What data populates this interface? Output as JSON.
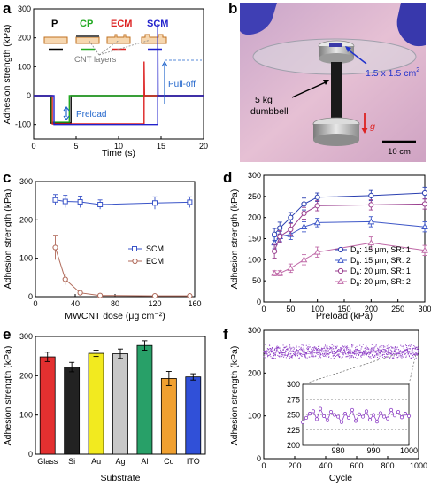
{
  "panels": {
    "a": {
      "label": "a"
    },
    "b": {
      "label": "b"
    },
    "c": {
      "label": "c"
    },
    "d": {
      "label": "d"
    },
    "e": {
      "label": "e"
    },
    "f": {
      "label": "f"
    }
  },
  "colors": {
    "P": "#000000",
    "CP": "#22aa22",
    "ECM": "#dd2222",
    "SCM": "#2222cc",
    "SCM_c": "#3b55c8",
    "ECM_c": "#b06a5a",
    "d1": "#2a3fb0",
    "d2": "#3f58c8",
    "d3": "#9a3f8f",
    "d4": "#c06aa8",
    "f_pts": "#8e3fc6"
  },
  "panel_b": {
    "area_label": "1.5 x 1.5 cm",
    "area_sup": "2",
    "weight_label": "5 kg",
    "weight_label2": "dumbbell",
    "gravity_symbol": "g",
    "scale_label": "10 cm"
  },
  "chart_data": [
    {
      "id": "a",
      "type": "line",
      "title": "",
      "xlabel": "Time (s)",
      "ylabel": "Adhesion strength (kPa)",
      "xlim": [
        0,
        20
      ],
      "ylim": [
        -150,
        300
      ],
      "xticks": [
        0,
        5,
        10,
        15,
        20
      ],
      "yticks": [
        -100,
        0,
        100,
        200,
        300
      ],
      "xtick_labels": [
        "0",
        "5",
        "10",
        "15",
        "20"
      ],
      "ytick_labels": [
        "-100",
        "0",
        "100",
        "200",
        "300"
      ],
      "legend": [
        "P",
        "CP",
        "ECM",
        "SCM"
      ],
      "annotations": {
        "cnt": "CNT layers",
        "preload": "Preload",
        "pulloff": "Pull-off"
      },
      "series": [
        {
          "name": "P",
          "x": [
            0,
            2.0,
            2.0,
            4.4,
            4.4,
            20
          ],
          "y": [
            0,
            0,
            -95,
            -95,
            0,
            0
          ]
        },
        {
          "name": "CP",
          "x": [
            0,
            2.1,
            2.1,
            4.2,
            4.2,
            20
          ],
          "y": [
            0,
            0,
            -92,
            -92,
            0,
            0
          ]
        },
        {
          "name": "ECM",
          "x": [
            0,
            2.2,
            2.2,
            13.0,
            13.0,
            13.05,
            13.1,
            20
          ],
          "y": [
            0,
            0,
            -98,
            -98,
            118,
            0,
            0,
            0
          ]
        },
        {
          "name": "SCM",
          "x": [
            0,
            2.4,
            2.4,
            14.6,
            14.6,
            14.65,
            14.7,
            20
          ],
          "y": [
            0,
            0,
            -100,
            -100,
            248,
            0,
            0,
            0
          ]
        }
      ]
    },
    {
      "id": "c",
      "type": "line",
      "title": "",
      "xlabel": "MWCNT dose (μg cm⁻²)",
      "ylabel": "Adhesion strength (kPa)",
      "xlim": [
        0,
        160
      ],
      "ylim": [
        0,
        300
      ],
      "xticks": [
        0,
        40,
        80,
        120,
        160
      ],
      "yticks": [
        0,
        100,
        200,
        300
      ],
      "xtick_labels": [
        "0",
        "40",
        "80",
        "120",
        "160"
      ],
      "ytick_labels": [
        "0",
        "100",
        "200",
        "300"
      ],
      "legend_position": "right",
      "series": [
        {
          "name": "SCM",
          "x": [
            20,
            30,
            45,
            65,
            120,
            155
          ],
          "y": [
            252,
            248,
            247,
            240,
            244,
            246
          ],
          "err": [
            14,
            16,
            15,
            12,
            16,
            14
          ]
        },
        {
          "name": "ECM",
          "x": [
            20,
            30,
            45,
            65,
            120,
            155
          ],
          "y": [
            128,
            45,
            10,
            3,
            2,
            2
          ],
          "err": [
            32,
            14,
            4,
            2,
            1,
            1
          ]
        }
      ]
    },
    {
      "id": "d",
      "type": "line",
      "title": "",
      "xlabel": "Preload (kPa)",
      "ylabel": "Adhesion strength (kPa)",
      "xlim": [
        0,
        300
      ],
      "ylim": [
        0,
        300
      ],
      "xticks": [
        0,
        50,
        100,
        150,
        200,
        250,
        300
      ],
      "yticks": [
        0,
        50,
        100,
        150,
        200,
        250,
        300
      ],
      "xtick_labels": [
        "0",
        "50",
        "100",
        "150",
        "200",
        "250",
        "300"
      ],
      "ytick_labels": [
        "0",
        "50",
        "100",
        "150",
        "200",
        "250",
        "300"
      ],
      "legend_position": "bottom-right",
      "series": [
        {
          "name": "D",
          "legend_label": {
            "a": "D",
            "sub": "b",
            "b": ": 15 μm, SR: 1"
          },
          "x": [
            20,
            30,
            50,
            75,
            100,
            200,
            300
          ],
          "y": [
            160,
            175,
            200,
            232,
            248,
            252,
            258
          ],
          "err": [
            14,
            14,
            12,
            14,
            10,
            12,
            14
          ]
        },
        {
          "name": "D",
          "legend_label": {
            "a": "D",
            "sub": "b",
            "b": ": 15 μm, SR: 2"
          },
          "x": [
            20,
            30,
            50,
            75,
            100,
            200,
            300
          ],
          "y": [
            140,
            155,
            160,
            178,
            188,
            190,
            178
          ],
          "err": [
            14,
            12,
            12,
            12,
            10,
            12,
            12
          ]
        },
        {
          "name": "D",
          "legend_label": {
            "a": "D",
            "sub": "b",
            "b": ": 20 μm, SR: 1"
          },
          "x": [
            20,
            30,
            50,
            75,
            100,
            200,
            300
          ],
          "y": [
            120,
            155,
            172,
            210,
            228,
            230,
            232
          ],
          "err": [
            16,
            14,
            14,
            14,
            12,
            12,
            12
          ]
        },
        {
          "name": "D",
          "legend_label": {
            "a": "D",
            "sub": "b",
            "b": ": 20 μm, SR: 2"
          },
          "x": [
            20,
            30,
            50,
            75,
            100,
            200,
            300
          ],
          "y": [
            68,
            68,
            80,
            100,
            118,
            140,
            122
          ],
          "err": [
            6,
            6,
            10,
            12,
            12,
            14,
            12
          ]
        }
      ]
    },
    {
      "id": "e",
      "type": "bar",
      "title": "",
      "xlabel": "Substrate",
      "ylabel": "Adhesion strength (kPa)",
      "ylim": [
        0,
        300
      ],
      "yticks": [
        0,
        100,
        200,
        300
      ],
      "ytick_labels": [
        "0",
        "100",
        "200",
        "300"
      ],
      "categories": [
        "Glass",
        "Si",
        "Au",
        "Ag",
        "Al",
        "Cu",
        "ITO"
      ],
      "values": [
        248,
        222,
        257,
        256,
        277,
        193,
        197
      ],
      "err": [
        12,
        12,
        8,
        12,
        12,
        18,
        8
      ],
      "colors": [
        "#e33030",
        "#222222",
        "#f2ea1f",
        "#c8c8c8",
        "#28a068",
        "#f0a030",
        "#3050d8"
      ]
    },
    {
      "id": "f",
      "type": "scatter",
      "title": "",
      "xlabel": "Cycle",
      "ylabel": "Adhesion strength (kPa)",
      "xlim": [
        0,
        1000
      ],
      "ylim": [
        0,
        300
      ],
      "xticks": [
        0,
        200,
        400,
        600,
        800,
        1000
      ],
      "yticks": [
        0,
        100,
        200,
        300
      ],
      "xtick_labels": [
        "0",
        "200",
        "400",
        "600",
        "800",
        "1000"
      ],
      "ytick_labels": [
        "0",
        "100",
        "200",
        "300"
      ],
      "band": {
        "center": 250,
        "spread": 18,
        "count": 1000
      },
      "inset": {
        "xlim": [
          970,
          1000
        ],
        "ylim": [
          200,
          300
        ],
        "xticks": [
          980,
          990,
          1000
        ],
        "yticks": [
          225,
          250,
          275
        ],
        "xtick_labels": [
          "980",
          "990",
          "1000"
        ],
        "ytick_labels": [
          "200",
          "225",
          "250",
          "275",
          "300"
        ],
        "ytick_values": [
          200,
          225,
          250,
          275,
          300
        ],
        "x": [
          970,
          971,
          972,
          973,
          974,
          975,
          976,
          977,
          978,
          979,
          980,
          981,
          982,
          983,
          984,
          985,
          986,
          987,
          988,
          989,
          990,
          991,
          992,
          993,
          994,
          995,
          996,
          997,
          998,
          999,
          1000
        ],
        "y": [
          238,
          245,
          252,
          256,
          243,
          260,
          248,
          241,
          255,
          250,
          247,
          238,
          252,
          245,
          258,
          240,
          251,
          247,
          256,
          242,
          250,
          239,
          253,
          247,
          244,
          258,
          249,
          255,
          246,
          252,
          248
        ]
      }
    }
  ]
}
